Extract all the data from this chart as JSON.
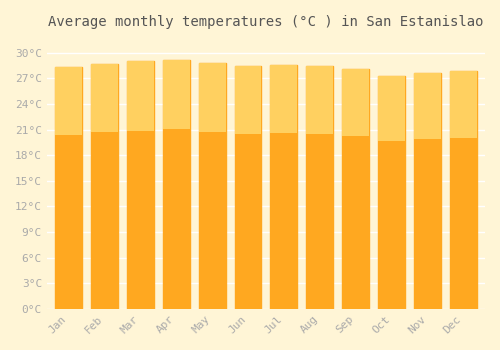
{
  "months": [
    "Jan",
    "Feb",
    "Mar",
    "Apr",
    "May",
    "Jun",
    "Jul",
    "Aug",
    "Sep",
    "Oct",
    "Nov",
    "Dec"
  ],
  "values": [
    28.3,
    28.7,
    29.0,
    29.2,
    28.8,
    28.4,
    28.6,
    28.4,
    28.1,
    27.3,
    27.6,
    27.8
  ],
  "bar_color": "#FFA500",
  "bar_color_gradient_top": "#FFB733",
  "bar_color_gradient_bottom": "#FFC84A",
  "background_color": "#FFF5D6",
  "plot_bg_color": "#FFF5D6",
  "grid_color": "#FFFFFF",
  "title": "Average monthly temperatures (°C ) in San Estanislao",
  "title_fontsize": 10,
  "tick_label_color": "#AAAAAA",
  "ylabel_ticks": [
    0,
    3,
    6,
    9,
    12,
    15,
    18,
    21,
    24,
    27,
    30
  ],
  "ylim": [
    0,
    31.5
  ],
  "xlabel_rotation": 45
}
